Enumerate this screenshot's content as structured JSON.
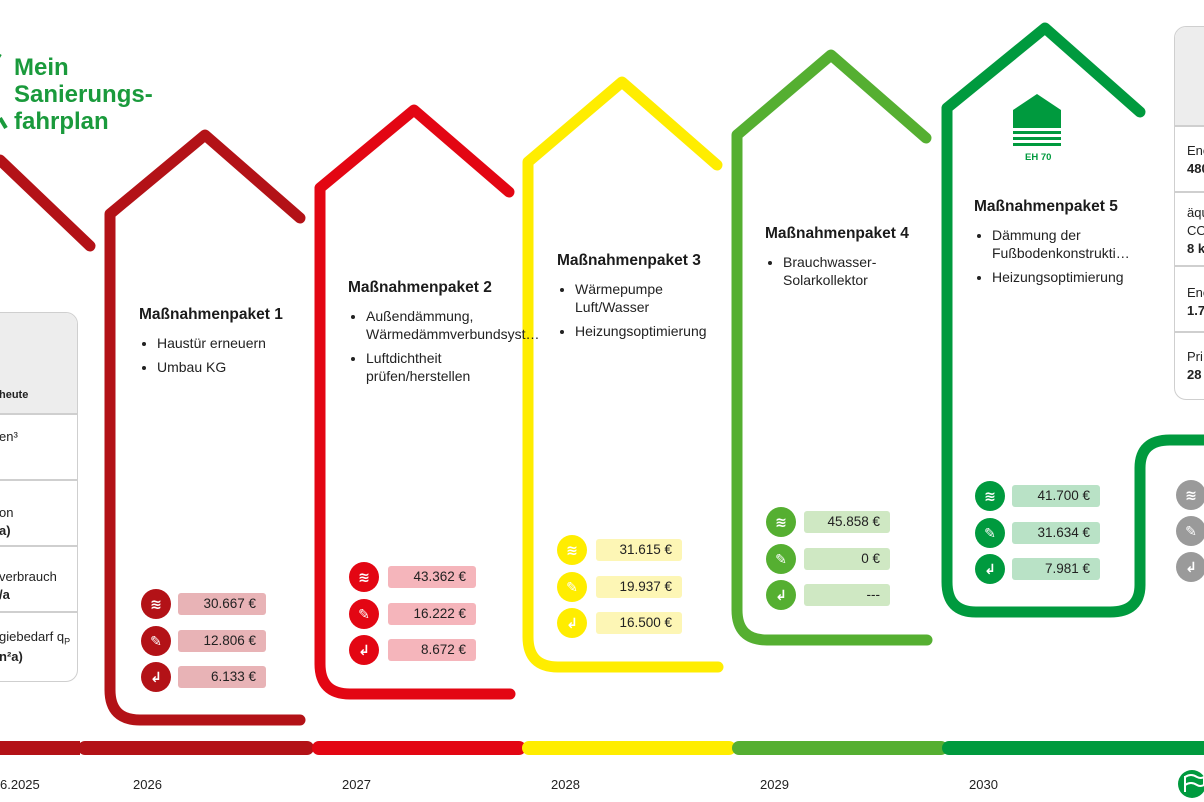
{
  "logo": {
    "line1": "Mein",
    "line2": "Sanierungs-",
    "line3": "fahrplan"
  },
  "left_card": {
    "header_label": "heute",
    "row1_text": "en³",
    "row2_line1": "on",
    "row2_line2": "a)",
    "row3_line1": "verbrauch",
    "row3_line2": "/a",
    "row4_line1": "giebedarf q",
    "row4_sub": "P",
    "row4_line2": "n²a)"
  },
  "right_card": {
    "row1_line1": "Ene",
    "row1_line2": "480",
    "row2_line1": "äqu",
    "row2_line2": "CO",
    "row2_line3": "8 k",
    "row3_line1": "Ene",
    "row3_line2": "1.7",
    "row4_line1": "Pri",
    "row4_line2": "28"
  },
  "packages": [
    {
      "title": "Maßnahmenpaket 1",
      "color": "#b31217",
      "pill": "#e8b3b6",
      "items": [
        "Haustür erneuern",
        "Umbau KG"
      ],
      "values": [
        "30.667 €",
        "12.806 €",
        "6.133 €"
      ]
    },
    {
      "title": "Maßnahmenpaket 2",
      "color": "#e30613",
      "pill": "#f5b5bb",
      "items": [
        "Außendämmung, Wärmedämmverbundsyst…",
        "Luftdichtheit prüfen/herstellen"
      ],
      "values": [
        "43.362 €",
        "16.222 €",
        "8.672 €"
      ]
    },
    {
      "title": "Maßnahmenpaket 3",
      "color": "#ffed00",
      "pill": "#fdf6b5",
      "items": [
        "Wärmepumpe Luft/Wasser",
        "Heizungsoptimierung"
      ],
      "values": [
        "31.615 €",
        "19.937 €",
        "16.500 €"
      ]
    },
    {
      "title": "Maßnahmenpaket 4",
      "color": "#55af31",
      "pill": "#cfe8c3",
      "items": [
        "Brauchwasser-Solarkollektor"
      ],
      "values": [
        "45.858 €",
        "0 €",
        "---"
      ]
    },
    {
      "title": "Maßnahmenpaket 5",
      "color": "#009a3e",
      "pill": "#b9e2c6",
      "items": [
        "Dämmung der Fußbodenkonstrukti…",
        "Heizungsoptimierung"
      ],
      "values": [
        "41.700 €",
        "31.634 €",
        "7.981 €"
      ],
      "badge": "EH 70"
    }
  ],
  "icons": [
    "coins-icon",
    "wrench-coins-icon",
    "hand-coins-icon"
  ],
  "years": [
    "6.2025",
    "2026",
    "2027",
    "2028",
    "2029",
    "2030"
  ],
  "timeline_colors": [
    "#b31217",
    "#b31217",
    "#e30613",
    "#ffed00",
    "#55af31",
    "#009a3e"
  ]
}
